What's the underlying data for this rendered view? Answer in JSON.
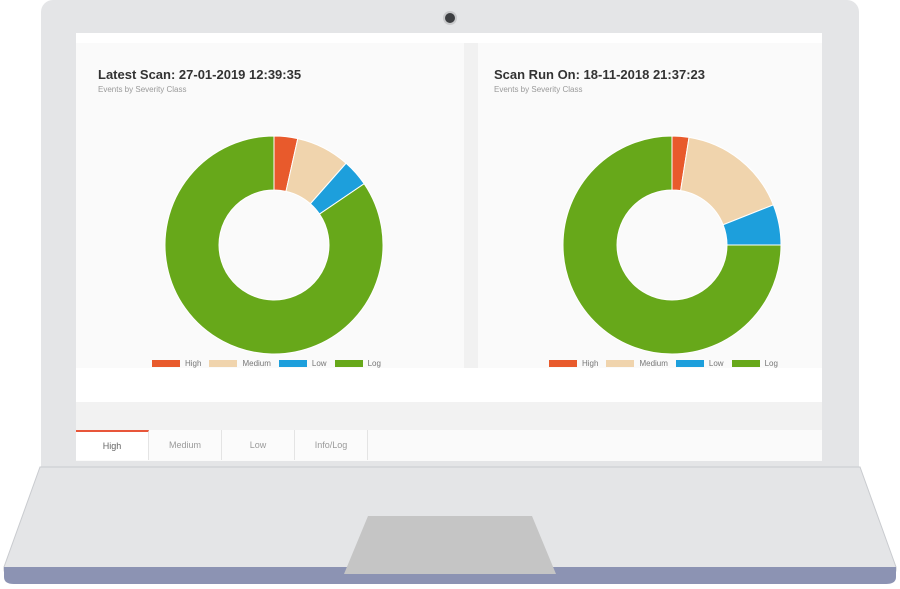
{
  "legend_colors": {
    "High": "#e85a2c",
    "Medium": "#f0d4ad",
    "Low": "#1d9fdc",
    "Log": "#67a81a"
  },
  "left_panel": {
    "title": "Latest Scan: 27-01-2019 12:39:35",
    "subtitle": "Events by Severity Class"
  },
  "right_panel": {
    "title": "Scan Run On: 18-11-2018 21:37:23",
    "subtitle": "Events by Severity Class"
  },
  "tabs": [
    {
      "label": "High",
      "active": true
    },
    {
      "label": "Medium",
      "active": false
    },
    {
      "label": "Low",
      "active": false
    },
    {
      "label": "Info/Log",
      "active": false
    }
  ],
  "chart_data": [
    {
      "type": "pie",
      "donut": true,
      "title": "Latest Scan: 27-01-2019 12:39:35",
      "subtitle": "Events by Severity Class",
      "categories": [
        "High",
        "Medium",
        "Low",
        "Log"
      ],
      "values": [
        3.5,
        8,
        4,
        84.5
      ],
      "unit": "%",
      "legend_position": "bottom"
    },
    {
      "type": "pie",
      "donut": true,
      "title": "Scan Run On: 18-11-2018 21:37:23",
      "subtitle": "Events by Severity Class",
      "categories": [
        "High",
        "Medium",
        "Low",
        "Log"
      ],
      "values": [
        2.5,
        16.5,
        6,
        75
      ],
      "unit": "%",
      "legend_position": "bottom"
    }
  ]
}
